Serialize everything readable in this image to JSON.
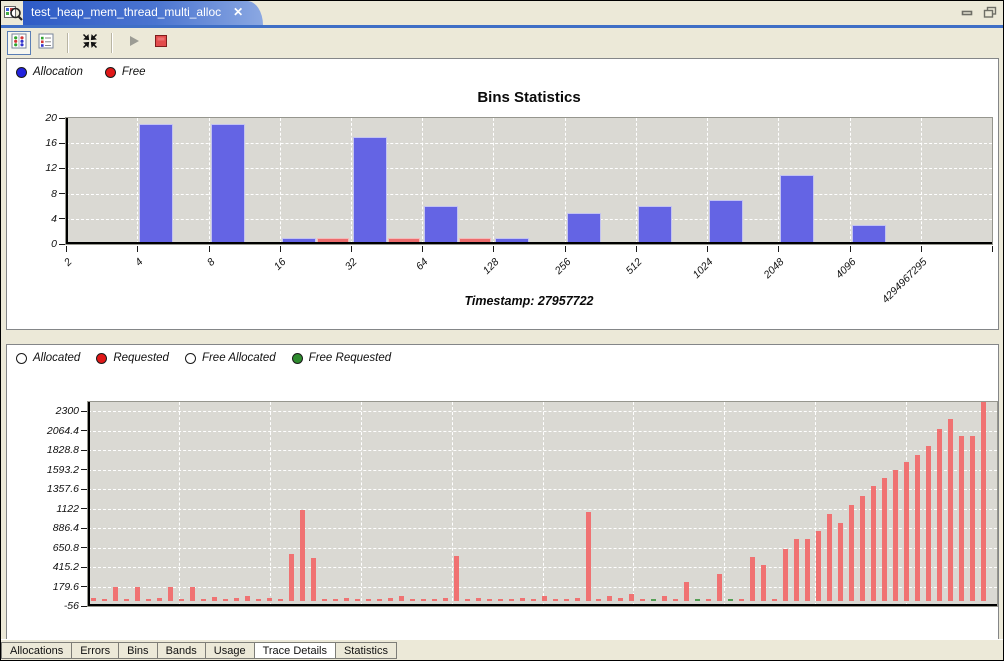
{
  "window": {
    "tab_title": "test_heap_mem_thread_multi_alloc",
    "icons": {
      "close": "✕"
    }
  },
  "toolbar": {
    "buttons": [
      "bins-chart-view",
      "details-list-view",
      "fit-to-window",
      "play",
      "stop"
    ]
  },
  "bins_panel": {
    "timestamp_label": "Timestamp: 27957722",
    "legend": [
      {
        "label": "Allocation",
        "color": "#2222DD"
      },
      {
        "label": "Free",
        "color": "#E01818"
      }
    ]
  },
  "trace_panel": {
    "legend": [
      {
        "label": "Allocated",
        "color": "#FFFFFF"
      },
      {
        "label": "Requested",
        "color": "#E01818"
      },
      {
        "label": "Free Allocated",
        "color": "#FFFFFF"
      },
      {
        "label": "Free Requested",
        "color": "#2E8B2E"
      }
    ]
  },
  "bottom_tabs": {
    "items": [
      "Allocations",
      "Errors",
      "Bins",
      "Bands",
      "Usage",
      "Trace Details",
      "Statistics"
    ],
    "active": "Trace Details"
  },
  "colors": {
    "chrome_bg": "#ECE9D8",
    "accent_blue": "#3F6FC6",
    "plot_bg": "#DAD9D3",
    "alloc_bar": "#6464E4",
    "free_bar": "#EC6C6C",
    "requested_bar": "#F07272",
    "free_requested_bar": "#55A055"
  },
  "chart_data": [
    {
      "type": "bar",
      "title": "Bins Statistics",
      "xlabel": "",
      "ylabel": "",
      "ylim": [
        0,
        20
      ],
      "yticks": [
        0,
        4,
        8,
        12,
        16,
        20
      ],
      "grid": true,
      "legend_position": "top-left-of-panel",
      "annotation": "Timestamp: 27957722",
      "categories": [
        "2",
        "4",
        "8",
        "16",
        "32",
        "64",
        "128",
        "256",
        "512",
        "1024",
        "2048",
        "4096",
        "4294967295"
      ],
      "series": [
        {
          "name": "Allocation",
          "color": "#6464E4",
          "values": [
            0,
            19,
            19,
            1,
            17,
            6,
            1,
            5,
            6,
            7,
            11,
            3,
            0
          ]
        },
        {
          "name": "Free",
          "color": "#EC6C6C",
          "values": [
            0,
            0,
            0,
            1,
            1,
            1,
            0,
            0,
            0,
            0,
            0,
            0,
            0
          ]
        }
      ]
    },
    {
      "type": "bar",
      "title": "",
      "xlabel": "",
      "ylabel": "",
      "ylim": [
        -56,
        2300
      ],
      "yticks": [
        2300,
        2064.4,
        1828.8,
        1593.2,
        1357.6,
        1122,
        886.4,
        650.8,
        415.2,
        179.6,
        -56
      ],
      "grid": true,
      "legend_position": "top-left-of-panel",
      "legend": [
        "Allocated",
        "Requested",
        "Free Allocated",
        "Free Requested"
      ],
      "series": [
        {
          "name": "Requested",
          "color": "#F07272",
          "values": [
            40,
            30,
            180,
            35,
            180,
            30,
            40,
            180,
            30,
            180,
            35,
            55,
            30,
            40,
            60,
            30,
            40,
            30,
            570,
            1100,
            520,
            35,
            30,
            40,
            30,
            35,
            30,
            40,
            60,
            30,
            35,
            30,
            40,
            545,
            30,
            40,
            30,
            35,
            30,
            40,
            30,
            60,
            35,
            30,
            40,
            1080,
            30,
            60,
            40,
            90,
            35,
            0,
            60,
            30,
            230,
            0,
            35,
            330,
            0,
            30,
            535,
            440,
            30,
            630,
            750,
            750,
            845,
            1060,
            950,
            1165,
            1270,
            1390,
            1490,
            1590,
            1690,
            1775,
            1880,
            2080,
            2200,
            2000,
            2000,
            2420
          ]
        },
        {
          "name": "Free Requested",
          "color": "#55A055",
          "sparse_values": {
            "51": 25,
            "55": 30,
            "58": 35
          }
        }
      ]
    }
  ]
}
